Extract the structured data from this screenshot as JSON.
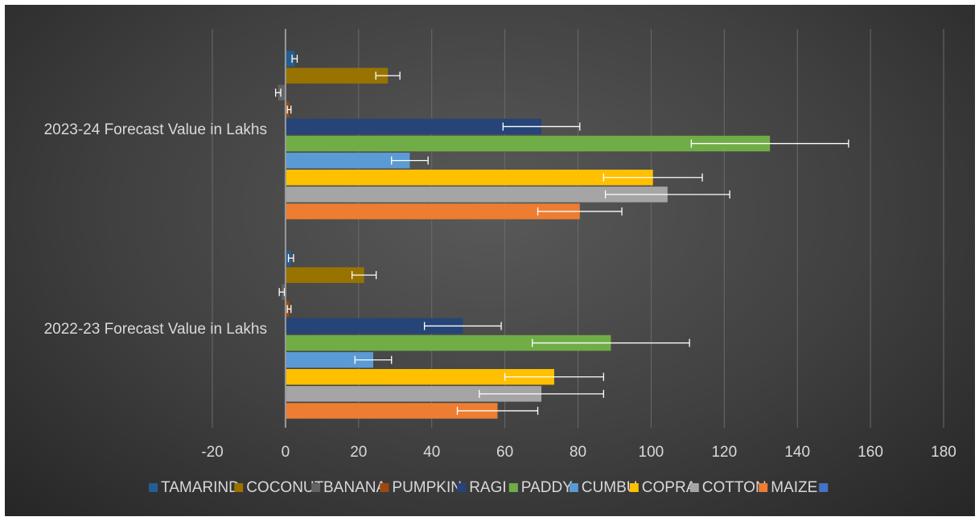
{
  "chart_data": {
    "type": "bar",
    "orientation": "horizontal",
    "title": "",
    "xlabel": "",
    "ylabel": "",
    "xlim": [
      -20,
      180
    ],
    "x_ticks": [
      -20,
      0,
      20,
      40,
      60,
      80,
      100,
      120,
      140,
      160,
      180
    ],
    "grid": true,
    "legend_position": "bottom",
    "error_bars": true,
    "categories": [
      "2022-23 Forecast Value in Lakhs",
      "2023-24 Forecast Value in Lakhs"
    ],
    "series": [
      {
        "name": "MAIZE",
        "color": "#ED7D31",
        "values": [
          58,
          80.5
        ],
        "errors": [
          11,
          11.5
        ]
      },
      {
        "name": "COTTON",
        "color": "#A5A5A5",
        "values": [
          70,
          104.5
        ],
        "errors": [
          17,
          17
        ]
      },
      {
        "name": "COPRA",
        "color": "#FFC000",
        "values": [
          73.5,
          100.5
        ],
        "errors": [
          13.5,
          13.5
        ]
      },
      {
        "name": "CUMBU",
        "color": "#5B9BD5",
        "values": [
          24,
          34
        ],
        "errors": [
          5,
          5
        ]
      },
      {
        "name": "PADDY",
        "color": "#70AD47",
        "values": [
          89,
          132.5
        ],
        "errors": [
          21.5,
          21.5
        ]
      },
      {
        "name": "RAGI",
        "color": "#264478",
        "values": [
          48.5,
          70
        ],
        "errors": [
          10.5,
          10.5
        ]
      },
      {
        "name": "PUMPKIN",
        "color": "#9E480E",
        "values": [
          1,
          1
        ],
        "errors": [
          0.5,
          0.5
        ]
      },
      {
        "name": "BANANA",
        "color": "#636363",
        "values": [
          -1,
          -2
        ],
        "errors": [
          0.7,
          0.7
        ]
      },
      {
        "name": "COCONUT",
        "color": "#997300",
        "values": [
          21.5,
          28
        ],
        "errors": [
          3.3,
          3.3
        ]
      },
      {
        "name": "TAMARIND",
        "color": "#255E91",
        "values": [
          1.5,
          2.5
        ],
        "errors": [
          0.7,
          0.7
        ]
      }
    ],
    "legend": {
      "entries": [
        "TAMARIND",
        "COCONUT",
        "BANANA",
        "PUMPKIN",
        "RAGI",
        "PADDY",
        "CUMBU",
        "COPRA",
        "COTTON",
        "MAIZE",
        ""
      ],
      "colors": [
        "#255E91",
        "#997300",
        "#636363",
        "#9E480E",
        "#264478",
        "#70AD47",
        "#5B9BD5",
        "#FFC000",
        "#A5A5A5",
        "#ED7D31",
        "#4472C4"
      ]
    }
  }
}
